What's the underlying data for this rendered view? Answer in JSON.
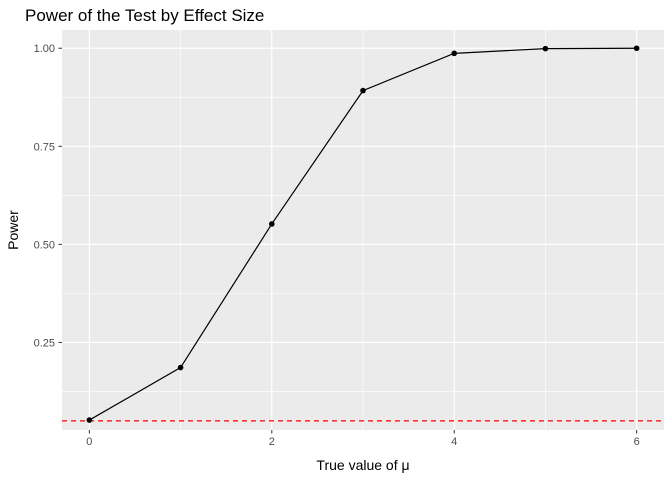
{
  "chart_data": {
    "type": "line",
    "title": "Power of the Test by Effect Size",
    "xlabel": "True value of μ",
    "ylabel": "Power",
    "x": [
      0,
      1,
      2,
      3,
      4,
      5,
      6
    ],
    "series": [
      {
        "values": [
          0.052,
          0.186,
          0.552,
          0.892,
          0.987,
          0.999,
          1.0
        ]
      }
    ],
    "reference_line": {
      "y": 0.05,
      "style": "dashed",
      "color": "#ff0000"
    },
    "xlim": [
      -0.3,
      6.3
    ],
    "ylim": [
      0.0267,
      1.0465
    ],
    "x_ticks": [
      "0",
      "2",
      "4",
      "6"
    ],
    "x_tick_values": [
      0,
      2,
      4,
      6
    ],
    "y_ticks": [
      "0.25",
      "0.50",
      "0.75",
      "1.00"
    ],
    "y_tick_values": [
      0.25,
      0.5,
      0.75,
      1.0
    ],
    "grid": true,
    "panel_color": "#ebebeb",
    "grid_color": "#ffffff",
    "series_color": "#000000"
  }
}
